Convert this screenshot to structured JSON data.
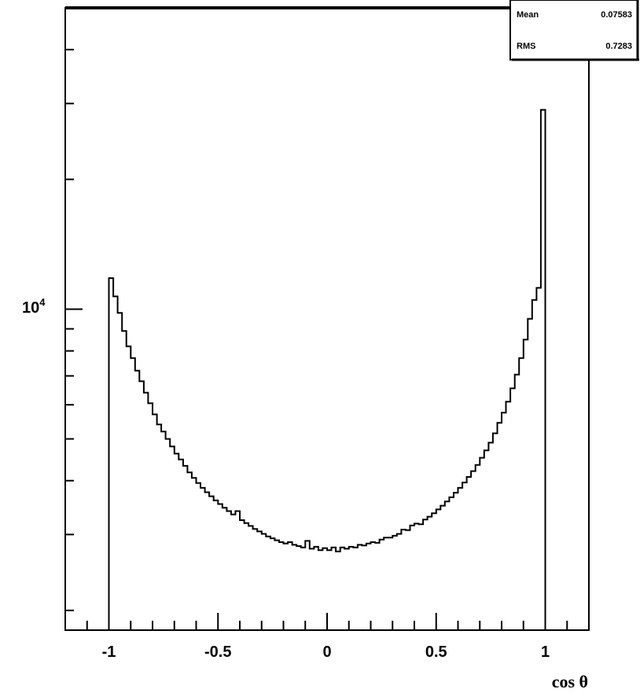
{
  "stats_box": {
    "mean_label": "Mean",
    "mean_value": "0.07583",
    "rms_label": "RMS",
    "rms_value": "0.7283"
  },
  "chart_data": {
    "type": "histogram",
    "xlabel": "cos θ",
    "ylabel": "",
    "title": "",
    "xlim": [
      -1.2,
      1.2
    ],
    "ylim": [
      1800,
      50000
    ],
    "y_scale": "log",
    "x_tick_labels": [
      "-1",
      "-0.5",
      "0",
      "0.5",
      "1"
    ],
    "y_tick_labels": [
      {
        "base": "10",
        "exp": "4",
        "value": 10000
      }
    ],
    "grid": false,
    "bin_edges_start": -1.0,
    "bin_width": 0.02,
    "values": [
      11800,
      10700,
      9800,
      8900,
      8200,
      7700,
      7200,
      6800,
      6400,
      6050,
      5700,
      5400,
      5200,
      5000,
      4800,
      4620,
      4480,
      4330,
      4180,
      4060,
      3950,
      3850,
      3760,
      3680,
      3600,
      3530,
      3460,
      3400,
      3340,
      3400,
      3240,
      3190,
      3140,
      3090,
      3050,
      3010,
      2970,
      2940,
      2910,
      2880,
      2860,
      2880,
      2840,
      2820,
      2800,
      2900,
      2780,
      2810,
      2760,
      2790,
      2760,
      2800,
      2740,
      2800,
      2780,
      2810,
      2800,
      2840,
      2830,
      2860,
      2880,
      2870,
      2920,
      2950,
      2950,
      2980,
      3010,
      3080,
      3070,
      3150,
      3180,
      3170,
      3250,
      3300,
      3360,
      3430,
      3500,
      3580,
      3660,
      3750,
      3850,
      3960,
      4080,
      4210,
      4350,
      4520,
      4700,
      4900,
      5150,
      5450,
      5750,
      6100,
      6550,
      7050,
      7700,
      8500,
      9500,
      10500,
      11200,
      29000
    ]
  }
}
